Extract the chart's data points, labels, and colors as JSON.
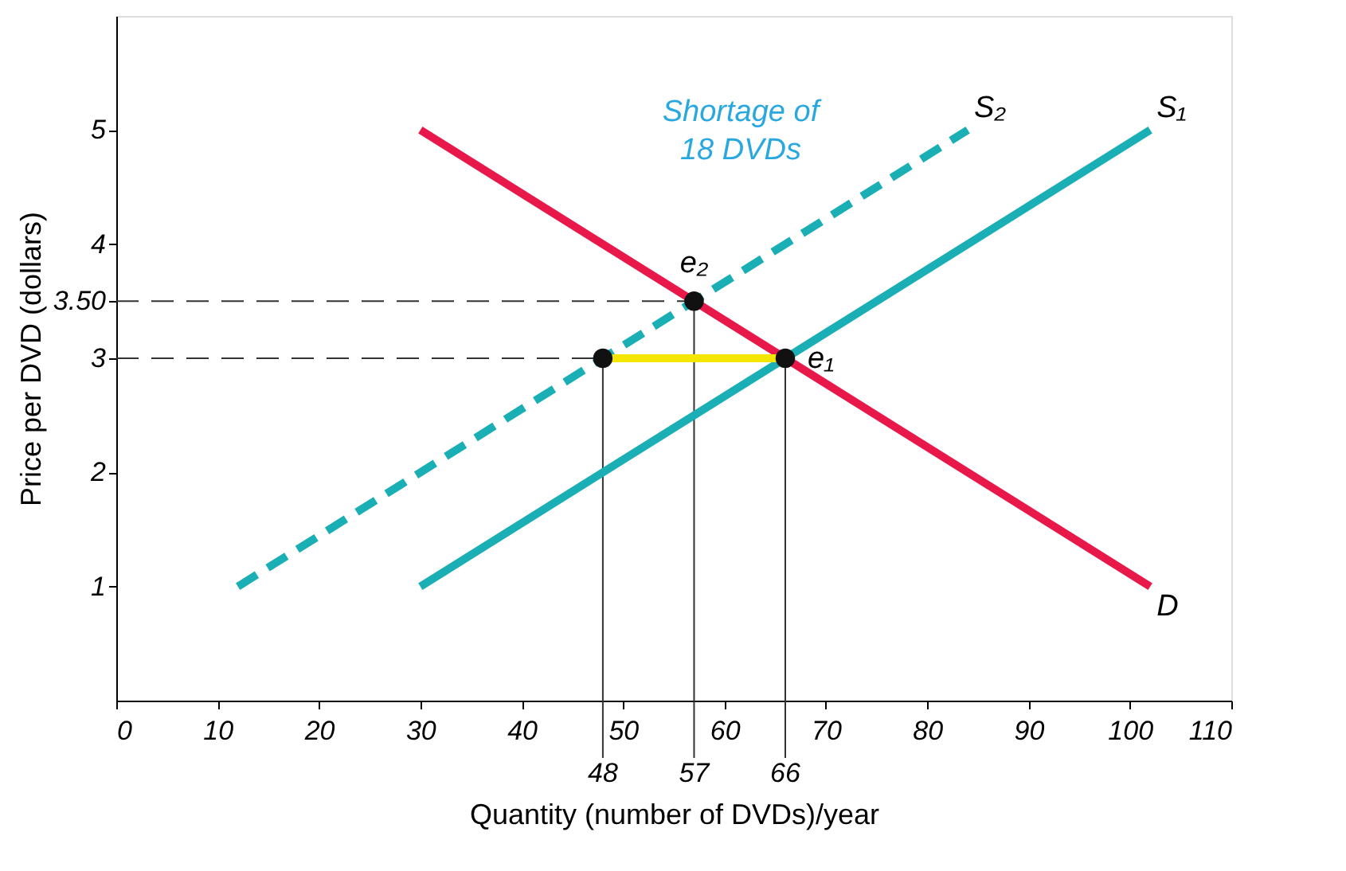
{
  "chart_data": {
    "type": "line",
    "xlabel": "Quantity (number of DVDs)/year",
    "ylabel": "Price per DVD (dollars)",
    "xlim": [
      0,
      110
    ],
    "ylim": [
      0,
      6
    ],
    "xticks": [
      0,
      10,
      20,
      30,
      40,
      50,
      60,
      70,
      80,
      90,
      100,
      110
    ],
    "yticks": [
      1,
      2,
      3,
      {
        "value": 3.5,
        "label": "3.50"
      },
      4,
      5
    ],
    "series": [
      {
        "name": "D",
        "color": "#e8194a",
        "x": [
          30,
          66,
          102
        ],
        "values": [
          5,
          3,
          1
        ],
        "line_style": "solid"
      },
      {
        "name": "S₁",
        "color": "#1aaeb5",
        "x": [
          30,
          66,
          102
        ],
        "values": [
          1,
          3,
          5
        ],
        "line_style": "solid"
      },
      {
        "name": "S₂",
        "color": "#1aaeb5",
        "x": [
          12,
          48,
          84
        ],
        "values": [
          1,
          3,
          5
        ],
        "line_style": "dashed"
      },
      {
        "color": "#f5e600",
        "x": [
          48,
          66
        ],
        "values": [
          3,
          3
        ],
        "line_style": "solid"
      },
      {
        "type": "scatter",
        "color": "#111111",
        "x": [
          48,
          57,
          66
        ],
        "values": [
          3,
          3.5,
          3
        ],
        "marker": "circle",
        "value_labels": [
          null,
          "e₂",
          "e₁"
        ]
      }
    ],
    "ref_lines": [
      {
        "axis": "y",
        "value": 3,
        "line_style": "dashed",
        "color": "#333333"
      },
      {
        "axis": "y",
        "value": 3.5,
        "line_style": "dashed",
        "color": "#333333"
      },
      {
        "axis": "x",
        "value": 48,
        "label": "48",
        "line_style": "solid",
        "color": "#333333"
      },
      {
        "axis": "x",
        "value": 57,
        "label": "57",
        "line_style": "solid",
        "color": "#333333"
      },
      {
        "axis": "x",
        "value": 66,
        "label": "66",
        "line_style": "solid",
        "color": "#333333"
      }
    ],
    "annotations": [
      "Shortage of",
      "18 DVDs"
    ],
    "legend": false,
    "grid": false
  }
}
